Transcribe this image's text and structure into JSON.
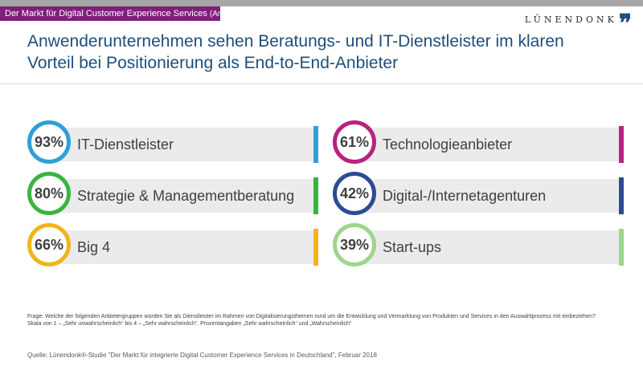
{
  "header": {
    "tag": "Der Markt für Digital Customer Experience Services",
    "tag_sub": "(Anwender)",
    "logo_text": "LÜNENDONK",
    "logo_mark": "❞"
  },
  "title": "Anwenderunternehmen sehen Beratungs- und IT-Dienstleister im klaren Vorteil bei Positionierung als End-to-End-Anbieter",
  "footnote": {
    "question": "Frage: Welche der folgenden Anbietergruppen würden Sie als Dienstleister im Rahmen von Digitalisierungsthemen rund um die Entwicklung und Vermarktung von Produkten und Services in den Auswahlprozess mit einbeziehen?",
    "scale": "Skala von 1 – „Sehr unwahrscheinlich“ bis 4 – „Sehr wahrscheinlich“, Prozentangaben „Sehr wahrscheinlich“ und „Wahrscheinlich“"
  },
  "source": "Quelle: Lünendonk®-Studie \"Der Markt für integrierte Digital Customer Experience Services in Deutschland\", Februar 2018",
  "chart_data": {
    "type": "bar",
    "title": "",
    "categories": [
      "IT-Dienstleister",
      "Strategie & Managementberatung",
      "Big 4",
      "Technologieanbieter",
      "Digital-/Internetagenturen",
      "Start-ups"
    ],
    "values": [
      93,
      80,
      66,
      61,
      42,
      39
    ],
    "value_labels": [
      "93%",
      "80%",
      "66%",
      "61%",
      "42%",
      "39%"
    ],
    "colors": [
      "#2e9fd9",
      "#3cb340",
      "#f2b41b",
      "#b8237e",
      "#2e4a94",
      "#9ed68a"
    ],
    "unit": "%"
  }
}
